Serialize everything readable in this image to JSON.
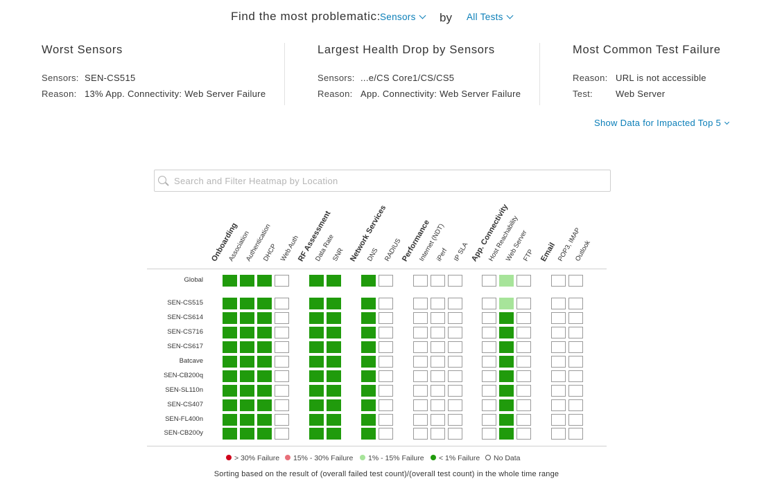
{
  "query": {
    "prompt": "Find the most problematic:",
    "entity_select": "Sensors",
    "by_label": "by",
    "test_select": "All Tests"
  },
  "panels": [
    {
      "title": "Worst Sensors",
      "rows": [
        {
          "key": "Sensors:",
          "value": "SEN-CS515"
        },
        {
          "key": "Reason:",
          "value": "13% App. Connectivity: Web Server Failure"
        }
      ]
    },
    {
      "title": "Largest Health Drop by Sensors",
      "rows": [
        {
          "key": "Sensors:",
          "value": "...e/CS Core1/CS/CS5"
        },
        {
          "key": "Reason:",
          "value": "App. Connectivity: Web Server Failure"
        }
      ]
    },
    {
      "title": "Most Common Test Failure",
      "rows": [
        {
          "key": "Reason:",
          "value": "URL is not accessible"
        },
        {
          "key": "Test:",
          "value": "Web Server"
        }
      ]
    }
  ],
  "show_data_link": "Show Data for Impacted Top 5",
  "search": {
    "placeholder": "Search and Filter Heatmap by Location",
    "value": ""
  },
  "heatmap": {
    "columns": [
      {
        "label": "Onboarding",
        "group": true
      },
      {
        "label": "Association"
      },
      {
        "label": "Authentication"
      },
      {
        "label": "DHCP"
      },
      {
        "label": "Web Auth"
      },
      {
        "label": "RF Assessment",
        "group": true
      },
      {
        "label": "Data Rate"
      },
      {
        "label": "SNR"
      },
      {
        "label": "Network Services",
        "group": true
      },
      {
        "label": "DNS"
      },
      {
        "label": "RADIUS"
      },
      {
        "label": "Performance",
        "group": true
      },
      {
        "label": "Internet (NDT)"
      },
      {
        "label": "iPerf"
      },
      {
        "label": "IP SLA"
      },
      {
        "label": "App. Connectivity",
        "group": true
      },
      {
        "label": "Host Reachability"
      },
      {
        "label": "Web Server"
      },
      {
        "label": "FTP"
      },
      {
        "label": "Email",
        "group": true
      },
      {
        "label": "POP3, IMAP"
      },
      {
        "label": "Outlook"
      }
    ],
    "rows": [
      {
        "label": "Global",
        "cells": [
          "g",
          "g",
          "g",
          "n",
          "g",
          "g",
          "g",
          "n",
          "n",
          "n",
          "n",
          "n",
          "l",
          "n",
          "n",
          "n"
        ]
      },
      {
        "label": "SEN-CS515",
        "cells": [
          "g",
          "g",
          "g",
          "n",
          "g",
          "g",
          "g",
          "n",
          "n",
          "n",
          "n",
          "n",
          "l",
          "n",
          "n",
          "n"
        ]
      },
      {
        "label": "SEN-CS614",
        "cells": [
          "g",
          "g",
          "g",
          "n",
          "g",
          "g",
          "g",
          "n",
          "n",
          "n",
          "n",
          "n",
          "g",
          "n",
          "n",
          "n"
        ]
      },
      {
        "label": "SEN-CS716",
        "cells": [
          "g",
          "g",
          "g",
          "n",
          "g",
          "g",
          "g",
          "n",
          "n",
          "n",
          "n",
          "n",
          "g",
          "n",
          "n",
          "n"
        ]
      },
      {
        "label": "SEN-CS617",
        "cells": [
          "g",
          "g",
          "g",
          "n",
          "g",
          "g",
          "g",
          "n",
          "n",
          "n",
          "n",
          "n",
          "g",
          "n",
          "n",
          "n"
        ]
      },
      {
        "label": "Batcave",
        "cells": [
          "g",
          "g",
          "g",
          "n",
          "g",
          "g",
          "g",
          "n",
          "n",
          "n",
          "n",
          "n",
          "g",
          "n",
          "n",
          "n"
        ]
      },
      {
        "label": "SEN-CB200q",
        "cells": [
          "g",
          "g",
          "g",
          "n",
          "g",
          "g",
          "g",
          "n",
          "n",
          "n",
          "n",
          "n",
          "g",
          "n",
          "n",
          "n"
        ]
      },
      {
        "label": "SEN-SL110n",
        "cells": [
          "g",
          "g",
          "g",
          "n",
          "g",
          "g",
          "g",
          "n",
          "n",
          "n",
          "n",
          "n",
          "g",
          "n",
          "n",
          "n"
        ]
      },
      {
        "label": "SEN-CS407",
        "cells": [
          "g",
          "g",
          "g",
          "n",
          "g",
          "g",
          "g",
          "n",
          "n",
          "n",
          "n",
          "n",
          "g",
          "n",
          "n",
          "n"
        ]
      },
      {
        "label": "SEN-FL400n",
        "cells": [
          "g",
          "g",
          "g",
          "n",
          "g",
          "g",
          "g",
          "n",
          "n",
          "n",
          "n",
          "n",
          "g",
          "n",
          "n",
          "n"
        ]
      },
      {
        "label": "SEN-CB200y",
        "cells": [
          "g",
          "g",
          "g",
          "n",
          "g",
          "g",
          "g",
          "n",
          "n",
          "n",
          "n",
          "n",
          "g",
          "n",
          "n",
          "n"
        ]
      }
    ]
  },
  "legend": [
    {
      "label": "> 30% Failure",
      "color": "#d0021b",
      "style": "filled"
    },
    {
      "label": "15% - 30% Failure",
      "color": "#e8707a",
      "style": "filled"
    },
    {
      "label": "1% - 15% Failure",
      "color": "#a7e49a",
      "style": "filled"
    },
    {
      "label": "< 1% Failure",
      "color": "#209b0c",
      "style": "filled"
    },
    {
      "label": "No Data",
      "color": "#555555",
      "style": "outline"
    }
  ],
  "footnote": "Sorting based on the result of (overall failed test count)/(overall test count) in the whole time range"
}
